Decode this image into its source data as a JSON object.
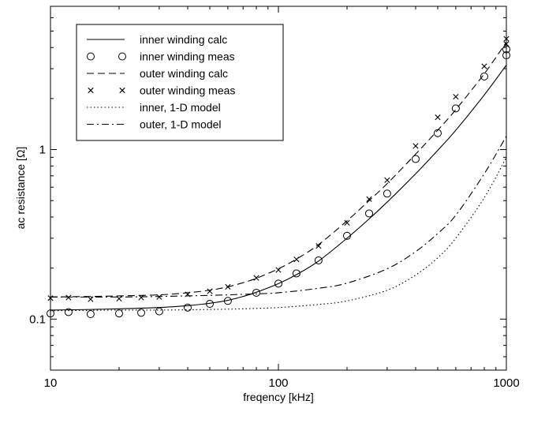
{
  "chart_data": {
    "type": "line",
    "title": "",
    "xlabel": "freqency [kHz]",
    "ylabel": "ac resistance [Ω]",
    "xscale": "log",
    "yscale": "log",
    "xlim": [
      10,
      1000
    ],
    "ylim": [
      0.05,
      7
    ],
    "grid": false,
    "legend_position": "top-left",
    "x_ticks": [
      {
        "value": 10,
        "label": "10"
      },
      {
        "value": 100,
        "label": "100"
      },
      {
        "value": 1000,
        "label": "1000"
      }
    ],
    "y_ticks": [
      {
        "value": 0.1,
        "label": "0.1"
      },
      {
        "value": 1,
        "label": "1"
      }
    ],
    "series": [
      {
        "name": "inner winding calc",
        "style": "solid",
        "marker": "none",
        "x": [
          10,
          15,
          20,
          30,
          40,
          50,
          60,
          70,
          80,
          100,
          120,
          150,
          200,
          250,
          300,
          400,
          500,
          600,
          800,
          1000
        ],
        "y": [
          0.113,
          0.114,
          0.115,
          0.117,
          0.12,
          0.124,
          0.129,
          0.136,
          0.144,
          0.162,
          0.183,
          0.22,
          0.3,
          0.39,
          0.49,
          0.72,
          0.99,
          1.3,
          2.1,
          3.15
        ]
      },
      {
        "name": "inner winding meas",
        "style": "none",
        "marker": "circle",
        "x": [
          10,
          12,
          15,
          20,
          25,
          30,
          40,
          50,
          60,
          80,
          100,
          120,
          150,
          200,
          250,
          300,
          400,
          500,
          600,
          800,
          1000,
          1000
        ],
        "y": [
          0.108,
          0.11,
          0.107,
          0.108,
          0.109,
          0.111,
          0.117,
          0.123,
          0.128,
          0.143,
          0.162,
          0.186,
          0.222,
          0.31,
          0.42,
          0.55,
          0.88,
          1.25,
          1.75,
          2.7,
          3.6,
          3.9
        ]
      },
      {
        "name": "outer winding calc",
        "style": "dashed",
        "marker": "none",
        "x": [
          10,
          15,
          20,
          30,
          40,
          50,
          60,
          70,
          80,
          100,
          120,
          150,
          200,
          250,
          300,
          400,
          500,
          600,
          800,
          1000
        ],
        "y": [
          0.135,
          0.136,
          0.137,
          0.139,
          0.143,
          0.148,
          0.155,
          0.164,
          0.174,
          0.198,
          0.226,
          0.275,
          0.38,
          0.5,
          0.63,
          0.94,
          1.3,
          1.72,
          2.8,
          4.3
        ]
      },
      {
        "name": "outer winding meas",
        "style": "none",
        "marker": "x",
        "x": [
          10,
          12,
          15,
          20,
          25,
          30,
          40,
          50,
          60,
          80,
          100,
          120,
          150,
          200,
          250,
          300,
          400,
          500,
          600,
          800,
          1000,
          1000
        ],
        "y": [
          0.133,
          0.134,
          0.131,
          0.132,
          0.134,
          0.135,
          0.14,
          0.146,
          0.155,
          0.175,
          0.195,
          0.225,
          0.27,
          0.37,
          0.51,
          0.66,
          1.05,
          1.55,
          2.05,
          3.1,
          4.2,
          4.5
        ]
      },
      {
        "name": "inner, 1-D model",
        "style": "dotted",
        "marker": "none",
        "x": [
          10,
          20,
          30,
          50,
          70,
          100,
          150,
          200,
          300,
          400,
          500,
          600,
          800,
          1000
        ],
        "y": [
          0.112,
          0.113,
          0.113,
          0.114,
          0.115,
          0.117,
          0.122,
          0.128,
          0.148,
          0.182,
          0.23,
          0.3,
          0.52,
          0.9
        ]
      },
      {
        "name": "outer, 1-D model",
        "style": "dashdot",
        "marker": "none",
        "x": [
          10,
          20,
          30,
          50,
          70,
          100,
          150,
          200,
          300,
          400,
          500,
          600,
          800,
          1000
        ],
        "y": [
          0.135,
          0.135,
          0.136,
          0.138,
          0.14,
          0.143,
          0.152,
          0.163,
          0.198,
          0.25,
          0.32,
          0.41,
          0.72,
          1.2
        ]
      }
    ]
  }
}
